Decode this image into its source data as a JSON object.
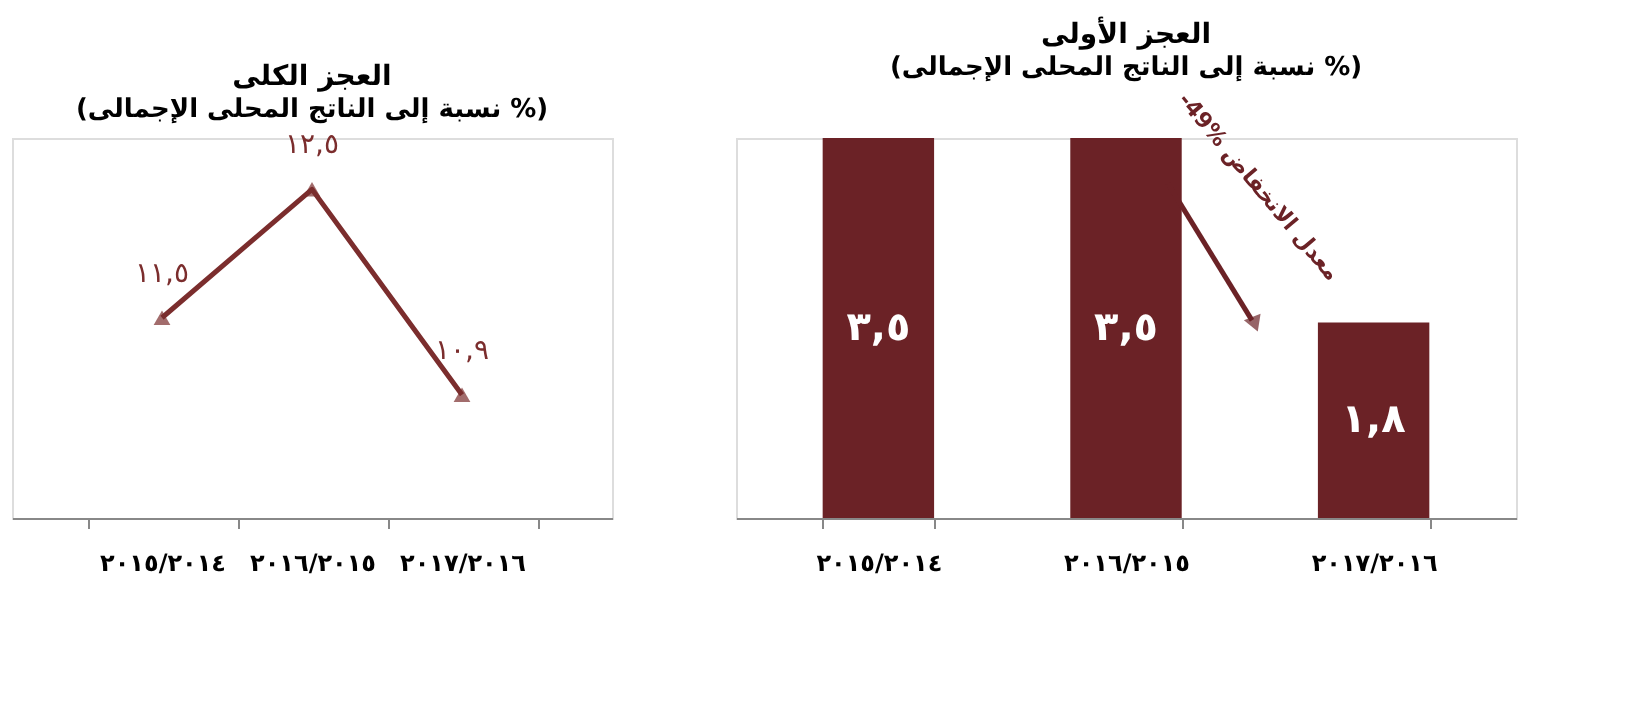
{
  "chart_data": [
    {
      "type": "line",
      "title": "العجز الكلى",
      "subtitle": "(نسبة إلى الناتج المحلى الإجمالى %)",
      "categories": [
        "٢٠١٥/٢٠١٤",
        "٢٠١٦/٢٠١٥",
        "٢٠١٧/٢٠١٦"
      ],
      "series": [
        {
          "color": "#7b2d2d",
          "values": [
            11.5,
            12.5,
            10.9
          ],
          "value_labels": [
            "١١,٥",
            "١٢,٥",
            "١٠,٩"
          ]
        }
      ],
      "marker": "triangle",
      "tick_labels": "x",
      "grid": false
    },
    {
      "type": "bar",
      "title": "العجز الأولى",
      "subtitle": "(نسبة إلى الناتج المحلى الإجمالى %)",
      "categories": [
        "٢٠١٥/٢٠١٤",
        "٢٠١٦/٢٠١٥",
        "٢٠١٧/٢٠١٦"
      ],
      "series": [
        {
          "color": "#6b2226",
          "values": [
            3.5,
            3.5,
            1.8
          ],
          "value_labels": [
            "٣,٥",
            "٣,٥",
            "١,٨"
          ]
        }
      ],
      "annotations": [
        "-49% معدل الانخفاض"
      ],
      "tick_labels": "x",
      "grid": false
    }
  ]
}
